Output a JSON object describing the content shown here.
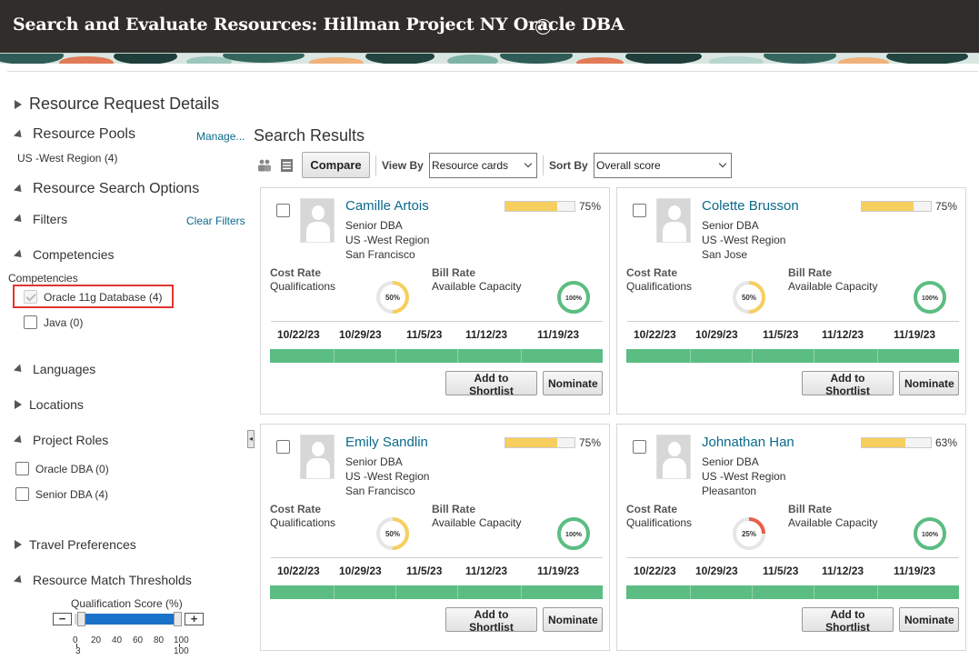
{
  "header": {
    "title": "Search and Evaluate Resources: Hillman Project NY Oracle DBA",
    "help_icon": "?"
  },
  "left_panel": {
    "resource_request_details": "Resource Request Details",
    "resource_pools": {
      "title": "Resource Pools",
      "manage_link": "Manage...",
      "value": "US -West Region (4)"
    },
    "resource_search_options": "Resource Search Options",
    "filters": {
      "title": "Filters",
      "clear_link": "Clear Filters"
    },
    "competencies": {
      "title": "Competencies",
      "sublabel": "Competencies",
      "items": [
        {
          "label": "Oracle 11g Database (4)",
          "checked": true
        },
        {
          "label": "Java (0)",
          "checked": false
        }
      ]
    },
    "languages": "Languages",
    "locations": "Locations",
    "project_roles": {
      "title": "Project Roles",
      "items": [
        {
          "label": "Oracle DBA (0)",
          "checked": false
        },
        {
          "label": "Senior DBA (4)",
          "checked": false
        }
      ]
    },
    "travel_preferences": "Travel Preferences",
    "resource_match_thresholds": {
      "title": "Resource Match Thresholds",
      "slider_label": "Qualification Score (%)",
      "minus": "−",
      "plus": "+",
      "ticks": [
        "0",
        "20",
        "40",
        "60",
        "80",
        "100"
      ],
      "min_value": "3",
      "max_value": "100",
      "min_fraction": 0.03,
      "max_fraction": 1.0
    }
  },
  "main": {
    "title": "Search Results",
    "toolbar": {
      "compare": "Compare",
      "view_by_label": "View By",
      "view_by_value": "Resource cards",
      "sort_by_label": "Sort By",
      "sort_by_value": "Overall score"
    },
    "card_labels": {
      "cost_rate": "Cost Rate",
      "qualifications": "Qualifications",
      "bill_rate": "Bill Rate",
      "available_capacity": "Available Capacity",
      "add_to_shortlist": "Add to Shortlist",
      "nominate": "Nominate"
    },
    "dates": [
      "10/22/23",
      "10/29/23",
      "11/5/23",
      "11/12/23",
      "11/19/23"
    ],
    "cards": [
      {
        "name": "Camille Artois",
        "title": "Senior DBA",
        "region": "US -West Region",
        "city": "San Francisco",
        "score": 0.75,
        "score_label": "75%",
        "qualifications": 0.5,
        "qualifications_label": "50%",
        "capacity": 1.0,
        "capacity_label": "100%"
      },
      {
        "name": "Colette Brusson",
        "title": "Senior DBA",
        "region": "US -West Region",
        "city": "San Jose",
        "score": 0.75,
        "score_label": "75%",
        "qualifications": 0.5,
        "qualifications_label": "50%",
        "capacity": 1.0,
        "capacity_label": "100%"
      },
      {
        "name": "Emily Sandlin",
        "title": "Senior DBA",
        "region": "US -West Region",
        "city": "San Francisco",
        "score": 0.75,
        "score_label": "75%",
        "qualifications": 0.5,
        "qualifications_label": "50%",
        "capacity": 1.0,
        "capacity_label": "100%"
      },
      {
        "name": "Johnathan Han",
        "title": "Senior DBA",
        "region": "US -West Region",
        "city": "Pleasanton",
        "score": 0.63,
        "score_label": "63%",
        "qualifications": 0.25,
        "qualifications_label": "25%",
        "capacity": 1.0,
        "capacity_label": "100%"
      }
    ]
  },
  "colors": {
    "header_bg": "#312d2a",
    "link": "#0a6a8a",
    "score_fill": "#f7cf5e",
    "ring_yellow": "#f7cf5e",
    "ring_red": "#e8604a",
    "ring_green": "#5bbd82",
    "availability_bar": "#5bbd82",
    "highlight": "#e0362f"
  }
}
